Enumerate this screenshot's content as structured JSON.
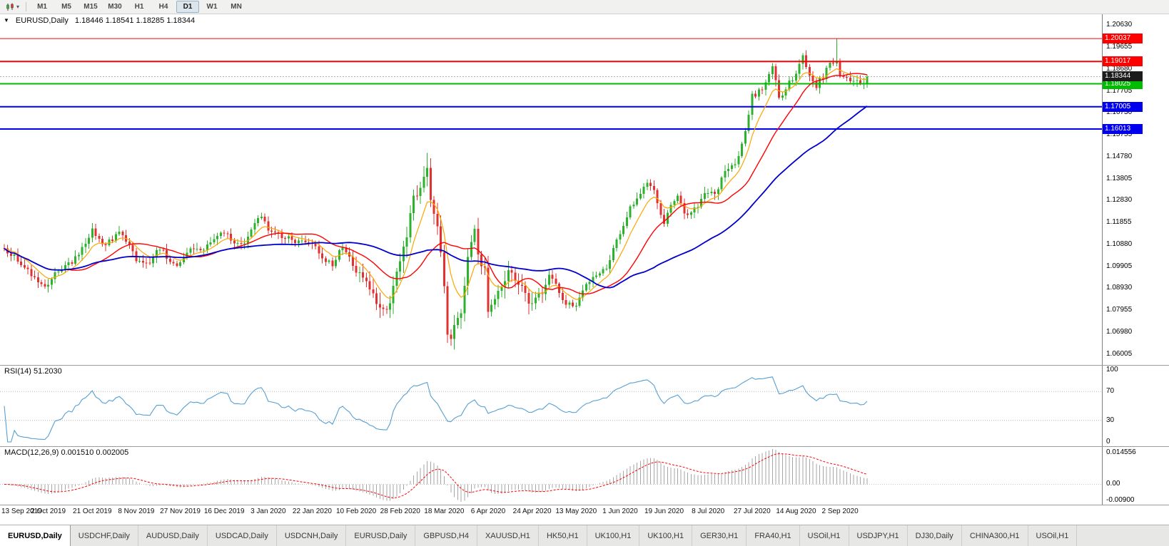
{
  "toolbar": {
    "chart_type_icon": "candlestick-chart-icon",
    "timeframes": [
      {
        "label": "M1",
        "active": false
      },
      {
        "label": "M5",
        "active": false
      },
      {
        "label": "M15",
        "active": false
      },
      {
        "label": "M30",
        "active": false
      },
      {
        "label": "H1",
        "active": false
      },
      {
        "label": "H4",
        "active": false
      },
      {
        "label": "D1",
        "active": true
      },
      {
        "label": "W1",
        "active": false
      },
      {
        "label": "MN",
        "active": false
      }
    ]
  },
  "price_panel": {
    "title_symbol": "EURUSD,Daily",
    "title_ohlc": "1.18446 1.18541 1.18285 1.18344",
    "y_ticks": [
      "1.20630",
      "1.19655",
      "1.18680",
      "1.17705",
      "1.16730",
      "1.15755",
      "1.14780",
      "1.13805",
      "1.12830",
      "1.11855",
      "1.10880",
      "1.09905",
      "1.08930",
      "1.07955",
      "1.06980",
      "1.06005"
    ],
    "levels": [
      {
        "label": "1.20037",
        "value": 1.20037,
        "color": "#FF0000",
        "thickness": 1
      },
      {
        "label": "1.19017",
        "value": 1.19017,
        "color": "#FF0000",
        "thickness": 2
      },
      {
        "label": "1.18025",
        "value": 1.18025,
        "color": "#00BB00",
        "thickness": 2
      },
      {
        "label": "1.17005",
        "value": 1.17005,
        "color": "#0000EE",
        "thickness": 2
      },
      {
        "label": "1.16013",
        "value": 1.16013,
        "color": "#0000EE",
        "thickness": 2
      }
    ],
    "bid": {
      "label": "1.18344",
      "value": 1.18344,
      "badge_color": "#1c1c1c",
      "line_color": "#b0b0b0"
    }
  },
  "rsi_panel": {
    "label": "RSI(14) 51.2030",
    "line_color": "#569FD3",
    "ticks": [
      {
        "label": "100",
        "value": 100
      },
      {
        "label": "70",
        "value": 70
      },
      {
        "label": "30",
        "value": 30
      },
      {
        "label": "0",
        "value": 0
      }
    ],
    "dotted_levels": [
      70,
      30
    ]
  },
  "macd_panel": {
    "label": "MACD(12,26,9) 0.001510 0.002005",
    "histogram_color": "#A6A6A6",
    "signal_color": "#FF0000",
    "tick_top": "0.014556",
    "tick_zero": "0.00",
    "tick_bottom": "-0.00900"
  },
  "x_axis": {
    "labels": [
      {
        "label": "13 Sep 2019",
        "index": 0
      },
      {
        "label": "2 Oct 2019",
        "index": 13
      },
      {
        "label": "21 Oct 2019",
        "index": 26
      },
      {
        "label": "8 Nov 2019",
        "index": 39
      },
      {
        "label": "27 Nov 2019",
        "index": 52
      },
      {
        "label": "16 Dec 2019",
        "index": 65
      },
      {
        "label": "3 Jan 2020",
        "index": 78
      },
      {
        "label": "22 Jan 2020",
        "index": 91
      },
      {
        "label": "10 Feb 2020",
        "index": 104
      },
      {
        "label": "28 Feb 2020",
        "index": 117
      },
      {
        "label": "18 Mar 2020",
        "index": 130
      },
      {
        "label": "6 Apr 2020",
        "index": 143
      },
      {
        "label": "24 Apr 2020",
        "index": 156
      },
      {
        "label": "13 May 2020",
        "index": 169
      },
      {
        "label": "1 Jun 2020",
        "index": 182
      },
      {
        "label": "19 Jun 2020",
        "index": 195
      },
      {
        "label": "8 Jul 2020",
        "index": 208
      },
      {
        "label": "27 Jul 2020",
        "index": 221
      },
      {
        "label": "14 Aug 2020",
        "index": 234
      },
      {
        "label": "2 Sep 2020",
        "index": 247
      }
    ]
  },
  "tabs": [
    {
      "label": "EURUSD,Daily",
      "active": true
    },
    {
      "label": "USDCHF,Daily",
      "active": false
    },
    {
      "label": "AUDUSD,Daily",
      "active": false
    },
    {
      "label": "USDCAD,Daily",
      "active": false
    },
    {
      "label": "USDCNH,Daily",
      "active": false
    },
    {
      "label": "EURUSD,Daily",
      "active": false
    },
    {
      "label": "GBPUSD,H4",
      "active": false
    },
    {
      "label": "XAUUSD,H1",
      "active": false
    },
    {
      "label": "HK50,H1",
      "active": false
    },
    {
      "label": "UK100,H1",
      "active": false
    },
    {
      "label": "UK100,H1",
      "active": false
    },
    {
      "label": "GER30,H1",
      "active": false
    },
    {
      "label": "FRA40,H1",
      "active": false
    },
    {
      "label": "USOil,H1",
      "active": false
    },
    {
      "label": "USDJPY,H1",
      "active": false
    },
    {
      "label": "DJ30,Daily",
      "active": false
    },
    {
      "label": "CHINA300,H1",
      "active": false
    },
    {
      "label": "USOil,H1",
      "active": false
    }
  ],
  "chart_data": {
    "type": "candlestick",
    "symbol": "EURUSD",
    "timeframe": "Daily",
    "candle_count": 256,
    "last_close": 1.18344,
    "colors": {
      "up": "#2DB22D",
      "down": "#E03232",
      "background": "#FFFFFF"
    },
    "y_axis": {
      "tick_step": 0.00975,
      "top_tick": 1.2063,
      "bottom_tick": 1.06005
    },
    "price_anchors": [
      [
        0,
        1.107
      ],
      [
        4,
        1.102
      ],
      [
        8,
        1.0955
      ],
      [
        12,
        1.089
      ],
      [
        14,
        1.0945
      ],
      [
        18,
        1.0985
      ],
      [
        22,
        1.104
      ],
      [
        26,
        1.115
      ],
      [
        29,
        1.1085
      ],
      [
        32,
        1.111
      ],
      [
        34,
        1.1152
      ],
      [
        37,
        1.1075
      ],
      [
        39,
        1.102
      ],
      [
        43,
        1.1005
      ],
      [
        46,
        1.1075
      ],
      [
        49,
        1.101
      ],
      [
        52,
        1.1
      ],
      [
        55,
        1.108
      ],
      [
        58,
        1.1055
      ],
      [
        61,
        1.1095
      ],
      [
        65,
        1.1145
      ],
      [
        68,
        1.1085
      ],
      [
        71,
        1.109
      ],
      [
        74,
        1.118
      ],
      [
        76,
        1.1213
      ],
      [
        78,
        1.116
      ],
      [
        82,
        1.112
      ],
      [
        86,
        1.1105
      ],
      [
        91,
        1.1093
      ],
      [
        94,
        1.1025
      ],
      [
        97,
        1.1
      ],
      [
        100,
        1.1085
      ],
      [
        103,
        1.1
      ],
      [
        106,
        1.0945
      ],
      [
        109,
        1.0865
      ],
      [
        111,
        1.079
      ],
      [
        113,
        1.0805
      ],
      [
        115,
        1.0885
      ],
      [
        117,
        1.1027
      ],
      [
        119,
        1.1135
      ],
      [
        121,
        1.1285
      ],
      [
        123,
        1.134
      ],
      [
        125,
        1.1448
      ],
      [
        126,
        1.128
      ],
      [
        128,
        1.118
      ],
      [
        130,
        1.091
      ],
      [
        131,
        1.069
      ],
      [
        132,
        1.066
      ],
      [
        133,
        1.072
      ],
      [
        135,
        1.079
      ],
      [
        137,
        1.102
      ],
      [
        139,
        1.1147
      ],
      [
        140,
        1.1048
      ],
      [
        142,
        1.0965
      ],
      [
        143,
        1.0791
      ],
      [
        146,
        1.086
      ],
      [
        148,
        1.093
      ],
      [
        150,
        1.098
      ],
      [
        152,
        1.091
      ],
      [
        154,
        1.087
      ],
      [
        156,
        1.082
      ],
      [
        159,
        1.087
      ],
      [
        161,
        1.0955
      ],
      [
        163,
        1.091
      ],
      [
        165,
        1.0834
      ],
      [
        168,
        1.0817
      ],
      [
        169,
        1.0815
      ],
      [
        172,
        1.0915
      ],
      [
        175,
        1.0949
      ],
      [
        178,
        1.0983
      ],
      [
        181,
        1.1101
      ],
      [
        182,
        1.1134
      ],
      [
        185,
        1.125
      ],
      [
        187,
        1.1291
      ],
      [
        190,
        1.1373
      ],
      [
        192,
        1.1324
      ],
      [
        195,
        1.1177
      ],
      [
        197,
        1.126
      ],
      [
        199,
        1.1308
      ],
      [
        201,
        1.1219
      ],
      [
        203,
        1.1234
      ],
      [
        206,
        1.128
      ],
      [
        208,
        1.133
      ],
      [
        210,
        1.13
      ],
      [
        213,
        1.1412
      ],
      [
        216,
        1.145
      ],
      [
        218,
        1.1525
      ],
      [
        221,
        1.175
      ],
      [
        224,
        1.1778
      ],
      [
        227,
        1.1876
      ],
      [
        229,
        1.1737
      ],
      [
        231,
        1.179
      ],
      [
        234,
        1.1842
      ],
      [
        236,
        1.1932
      ],
      [
        238,
        1.184
      ],
      [
        240,
        1.1797
      ],
      [
        242,
        1.1833
      ],
      [
        244,
        1.19
      ],
      [
        246,
        1.191
      ],
      [
        247,
        1.185
      ],
      [
        249,
        1.1837
      ],
      [
        251,
        1.1815
      ],
      [
        253,
        1.1801
      ],
      [
        255,
        1.18344
      ]
    ],
    "wick_overrides": [
      {
        "index": 246,
        "high": 1.2004
      },
      {
        "index": 125,
        "high": 1.1495
      },
      {
        "index": 132,
        "low": 1.0637
      }
    ],
    "moving_averages": [
      {
        "name": "ma-fast-line",
        "type": "ema",
        "period": 8,
        "color": "#FFA500",
        "width": 1.2
      },
      {
        "name": "ma-medium-line",
        "type": "sma",
        "period": 20,
        "color": "#FF0000",
        "width": 1.4
      },
      {
        "name": "ma-slow-line",
        "type": "sma",
        "period": 50,
        "color": "#0000CD",
        "width": 1.8
      }
    ],
    "indicators": {
      "rsi": {
        "period": 14,
        "current_display": "51.2030"
      },
      "macd": {
        "fast": 12,
        "slow": 26,
        "signal": 9,
        "current_macd_display": "0.001510",
        "current_signal_display": "0.002005"
      }
    },
    "horizontal_levels": [
      1.20037,
      1.19017,
      1.18025,
      1.17005,
      1.16013
    ]
  }
}
